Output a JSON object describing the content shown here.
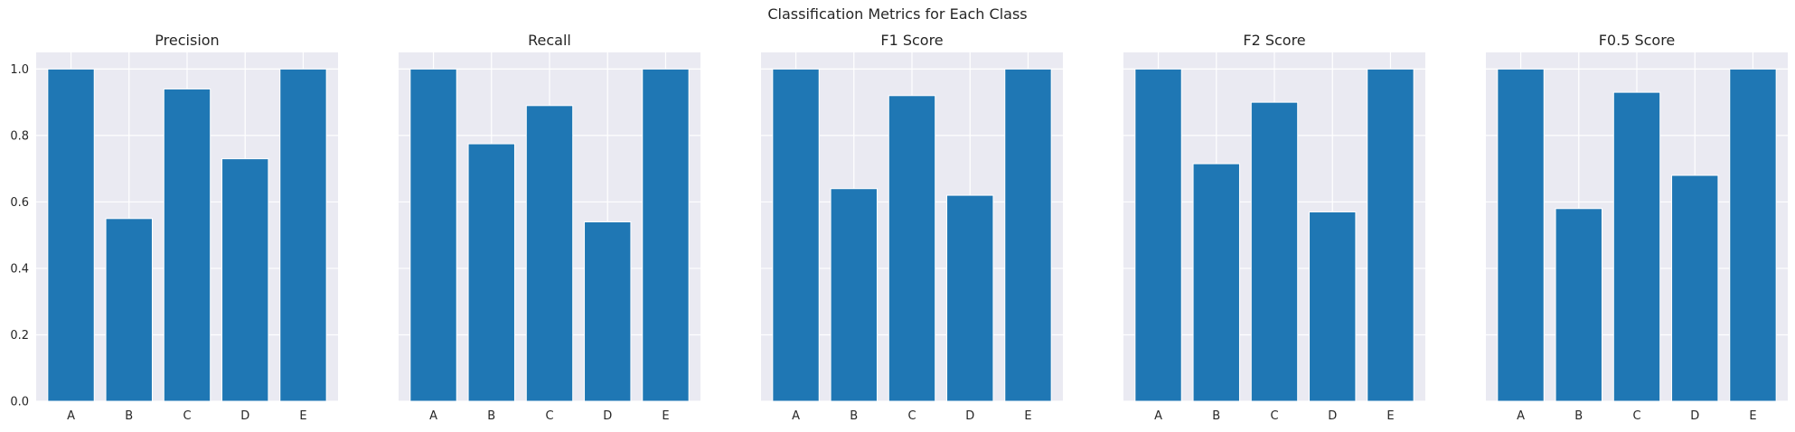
{
  "suptitle": "Classification Metrics for Each Class",
  "colors": {
    "bar": "#1f77b4",
    "axes_bg": "#eaeaf2",
    "grid": "#ffffff"
  },
  "chart_data": [
    {
      "type": "bar",
      "title": "Precision",
      "categories": [
        "A",
        "B",
        "C",
        "D",
        "E"
      ],
      "values": [
        1.0,
        0.55,
        0.94,
        0.73,
        1.0
      ],
      "ylim": [
        0,
        1.05
      ],
      "yticks": [
        "0.0",
        "0.2",
        "0.4",
        "0.6",
        "0.8",
        "1.0"
      ],
      "grid": true,
      "show_y_ticklabels": true
    },
    {
      "type": "bar",
      "title": "Recall",
      "categories": [
        "A",
        "B",
        "C",
        "D",
        "E"
      ],
      "values": [
        1.0,
        0.775,
        0.89,
        0.54,
        1.0
      ],
      "ylim": [
        0,
        1.05
      ],
      "yticks": [
        "0.0",
        "0.2",
        "0.4",
        "0.6",
        "0.8",
        "1.0"
      ],
      "grid": true,
      "show_y_ticklabels": false
    },
    {
      "type": "bar",
      "title": "F1 Score",
      "categories": [
        "A",
        "B",
        "C",
        "D",
        "E"
      ],
      "values": [
        1.0,
        0.64,
        0.92,
        0.62,
        1.0
      ],
      "ylim": [
        0,
        1.05
      ],
      "yticks": [
        "0.0",
        "0.2",
        "0.4",
        "0.6",
        "0.8",
        "1.0"
      ],
      "grid": true,
      "show_y_ticklabels": false
    },
    {
      "type": "bar",
      "title": "F2 Score",
      "categories": [
        "A",
        "B",
        "C",
        "D",
        "E"
      ],
      "values": [
        1.0,
        0.715,
        0.9,
        0.57,
        1.0
      ],
      "ylim": [
        0,
        1.05
      ],
      "yticks": [
        "0.0",
        "0.2",
        "0.4",
        "0.6",
        "0.8",
        "1.0"
      ],
      "grid": true,
      "show_y_ticklabels": false
    },
    {
      "type": "bar",
      "title": "F0.5 Score",
      "categories": [
        "A",
        "B",
        "C",
        "D",
        "E"
      ],
      "values": [
        1.0,
        0.58,
        0.93,
        0.68,
        1.0
      ],
      "ylim": [
        0,
        1.05
      ],
      "yticks": [
        "0.0",
        "0.2",
        "0.4",
        "0.6",
        "0.8",
        "1.0"
      ],
      "grid": true,
      "show_y_ticklabels": false
    }
  ]
}
